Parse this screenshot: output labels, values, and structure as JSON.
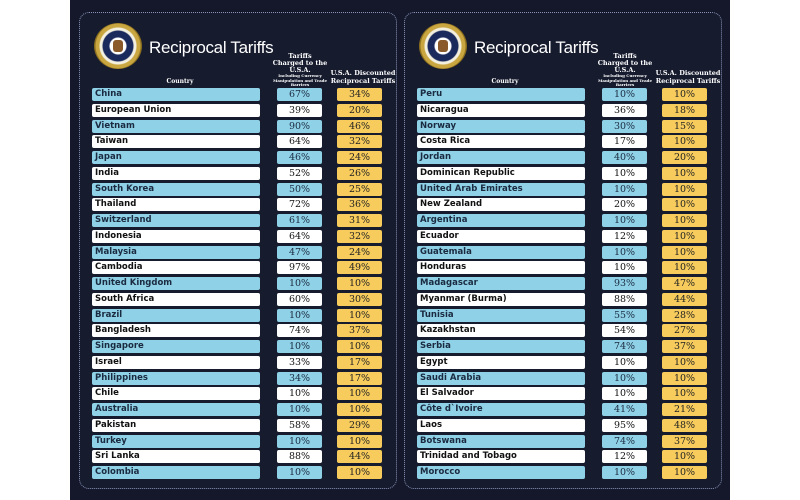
{
  "title": "Reciprocal Tariffs",
  "headers": {
    "country": "Country",
    "charged": "Tariffs Charged to the U.S.A.",
    "charged_sub": "Including Currency Manipulation and Trade Barriers",
    "discounted": "U.S.A. Discounted Reciprocal Tariffs"
  },
  "colors": {
    "background": "#14182a",
    "blue_row": "#8fd1e6",
    "white_row": "#ffffff",
    "discount": "#f8cc5c"
  },
  "panels": [
    {
      "rows": [
        {
          "country": "China",
          "charged": "67%",
          "discounted": "34%"
        },
        {
          "country": "European Union",
          "charged": "39%",
          "discounted": "20%"
        },
        {
          "country": "Vietnam",
          "charged": "90%",
          "discounted": "46%"
        },
        {
          "country": "Taiwan",
          "charged": "64%",
          "discounted": "32%"
        },
        {
          "country": "Japan",
          "charged": "46%",
          "discounted": "24%"
        },
        {
          "country": "India",
          "charged": "52%",
          "discounted": "26%"
        },
        {
          "country": "South Korea",
          "charged": "50%",
          "discounted": "25%"
        },
        {
          "country": "Thailand",
          "charged": "72%",
          "discounted": "36%"
        },
        {
          "country": "Switzerland",
          "charged": "61%",
          "discounted": "31%"
        },
        {
          "country": "Indonesia",
          "charged": "64%",
          "discounted": "32%"
        },
        {
          "country": "Malaysia",
          "charged": "47%",
          "discounted": "24%"
        },
        {
          "country": "Cambodia",
          "charged": "97%",
          "discounted": "49%"
        },
        {
          "country": "United Kingdom",
          "charged": "10%",
          "discounted": "10%"
        },
        {
          "country": "South Africa",
          "charged": "60%",
          "discounted": "30%"
        },
        {
          "country": "Brazil",
          "charged": "10%",
          "discounted": "10%"
        },
        {
          "country": "Bangladesh",
          "charged": "74%",
          "discounted": "37%"
        },
        {
          "country": "Singapore",
          "charged": "10%",
          "discounted": "10%"
        },
        {
          "country": "Israel",
          "charged": "33%",
          "discounted": "17%"
        },
        {
          "country": "Philippines",
          "charged": "34%",
          "discounted": "17%"
        },
        {
          "country": "Chile",
          "charged": "10%",
          "discounted": "10%"
        },
        {
          "country": "Australia",
          "charged": "10%",
          "discounted": "10%"
        },
        {
          "country": "Pakistan",
          "charged": "58%",
          "discounted": "29%"
        },
        {
          "country": "Turkey",
          "charged": "10%",
          "discounted": "10%"
        },
        {
          "country": "Sri Lanka",
          "charged": "88%",
          "discounted": "44%"
        },
        {
          "country": "Colombia",
          "charged": "10%",
          "discounted": "10%"
        }
      ]
    },
    {
      "rows": [
        {
          "country": "Peru",
          "charged": "10%",
          "discounted": "10%"
        },
        {
          "country": "Nicaragua",
          "charged": "36%",
          "discounted": "18%"
        },
        {
          "country": "Norway",
          "charged": "30%",
          "discounted": "15%"
        },
        {
          "country": "Costa Rica",
          "charged": "17%",
          "discounted": "10%"
        },
        {
          "country": "Jordan",
          "charged": "40%",
          "discounted": "20%"
        },
        {
          "country": "Dominican Republic",
          "charged": "10%",
          "discounted": "10%"
        },
        {
          "country": "United Arab Emirates",
          "charged": "10%",
          "discounted": "10%"
        },
        {
          "country": "New Zealand",
          "charged": "20%",
          "discounted": "10%"
        },
        {
          "country": "Argentina",
          "charged": "10%",
          "discounted": "10%"
        },
        {
          "country": "Ecuador",
          "charged": "12%",
          "discounted": "10%"
        },
        {
          "country": "Guatemala",
          "charged": "10%",
          "discounted": "10%"
        },
        {
          "country": "Honduras",
          "charged": "10%",
          "discounted": "10%"
        },
        {
          "country": "Madagascar",
          "charged": "93%",
          "discounted": "47%"
        },
        {
          "country": "Myanmar (Burma)",
          "charged": "88%",
          "discounted": "44%"
        },
        {
          "country": "Tunisia",
          "charged": "55%",
          "discounted": "28%"
        },
        {
          "country": "Kazakhstan",
          "charged": "54%",
          "discounted": "27%"
        },
        {
          "country": "Serbia",
          "charged": "74%",
          "discounted": "37%"
        },
        {
          "country": "Egypt",
          "charged": "10%",
          "discounted": "10%"
        },
        {
          "country": "Saudi Arabia",
          "charged": "10%",
          "discounted": "10%"
        },
        {
          "country": "El Salvador",
          "charged": "10%",
          "discounted": "10%"
        },
        {
          "country": "Côte d`Ivoire",
          "charged": "41%",
          "discounted": "21%"
        },
        {
          "country": "Laos",
          "charged": "95%",
          "discounted": "48%"
        },
        {
          "country": "Botswana",
          "charged": "74%",
          "discounted": "37%"
        },
        {
          "country": "Trinidad and Tobago",
          "charged": "12%",
          "discounted": "10%"
        },
        {
          "country": "Morocco",
          "charged": "10%",
          "discounted": "10%"
        }
      ]
    }
  ]
}
